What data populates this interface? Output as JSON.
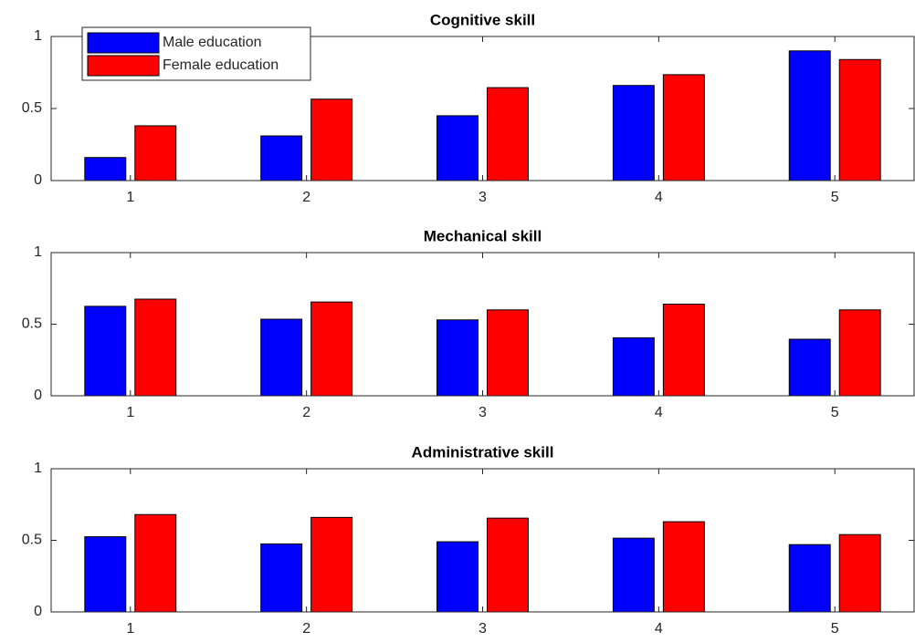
{
  "chart_data": [
    {
      "type": "bar",
      "title": "Cognitive skill",
      "x": [
        1,
        2,
        3,
        4,
        5
      ],
      "xlim": [
        0.55,
        5.45
      ],
      "xticks": [
        1,
        2,
        3,
        4,
        5
      ],
      "ylim": [
        0,
        1
      ],
      "yticks": [
        0,
        0.5,
        1
      ],
      "legend": "northwest",
      "series": [
        {
          "name": "Male education",
          "color": "#0000ff",
          "values": [
            0.16,
            0.31,
            0.45,
            0.66,
            0.9
          ]
        },
        {
          "name": "Female education",
          "color": "#ff0000",
          "values": [
            0.38,
            0.565,
            0.645,
            0.735,
            0.84
          ]
        }
      ]
    },
    {
      "type": "bar",
      "title": "Mechanical skill",
      "x": [
        1,
        2,
        3,
        4,
        5
      ],
      "xlim": [
        0.55,
        5.45
      ],
      "xticks": [
        1,
        2,
        3,
        4,
        5
      ],
      "ylim": [
        0,
        1
      ],
      "yticks": [
        0,
        0.5,
        1
      ],
      "series": [
        {
          "color": "#0000ff",
          "values": [
            0.625,
            0.535,
            0.53,
            0.405,
            0.395
          ]
        },
        {
          "color": "#ff0000",
          "values": [
            0.675,
            0.655,
            0.6,
            0.64,
            0.6
          ]
        }
      ]
    },
    {
      "type": "bar",
      "title": "Administrative skill",
      "x": [
        1,
        2,
        3,
        4,
        5
      ],
      "xlim": [
        0.55,
        5.45
      ],
      "xticks": [
        1,
        2,
        3,
        4,
        5
      ],
      "ylim": [
        0,
        1
      ],
      "yticks": [
        0,
        0.5,
        1
      ],
      "series": [
        {
          "color": "#0000ff",
          "values": [
            0.525,
            0.475,
            0.49,
            0.515,
            0.47
          ]
        },
        {
          "color": "#ff0000",
          "values": [
            0.68,
            0.66,
            0.655,
            0.63,
            0.54
          ]
        }
      ]
    }
  ]
}
